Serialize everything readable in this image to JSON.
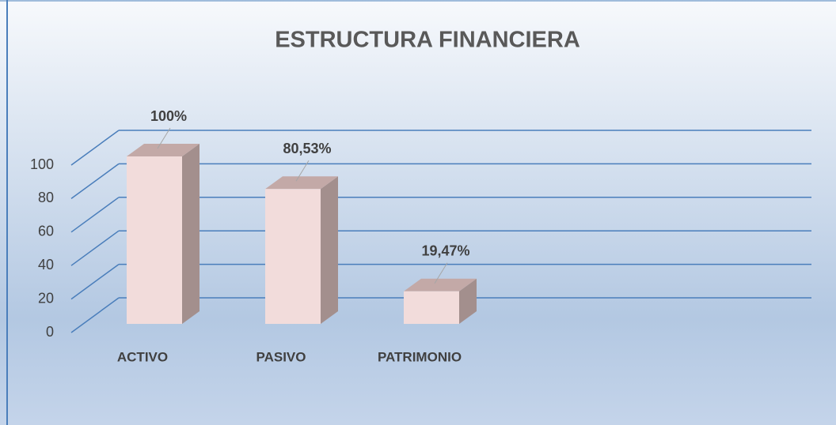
{
  "chart_data": {
    "type": "bar3d",
    "title": "ESTRUCTURA FINANCIERA",
    "categories": [
      "ACTIVO",
      "PASIVO",
      "PATRIMONIO"
    ],
    "values": [
      100,
      80.53,
      19.47
    ],
    "value_labels": [
      "100%",
      "80,53%",
      "19,47%"
    ],
    "color": "#f2dcdb",
    "ylim": [
      0,
      100
    ],
    "yticks": [
      0,
      20,
      40,
      60,
      80,
      100
    ],
    "grid": true
  }
}
